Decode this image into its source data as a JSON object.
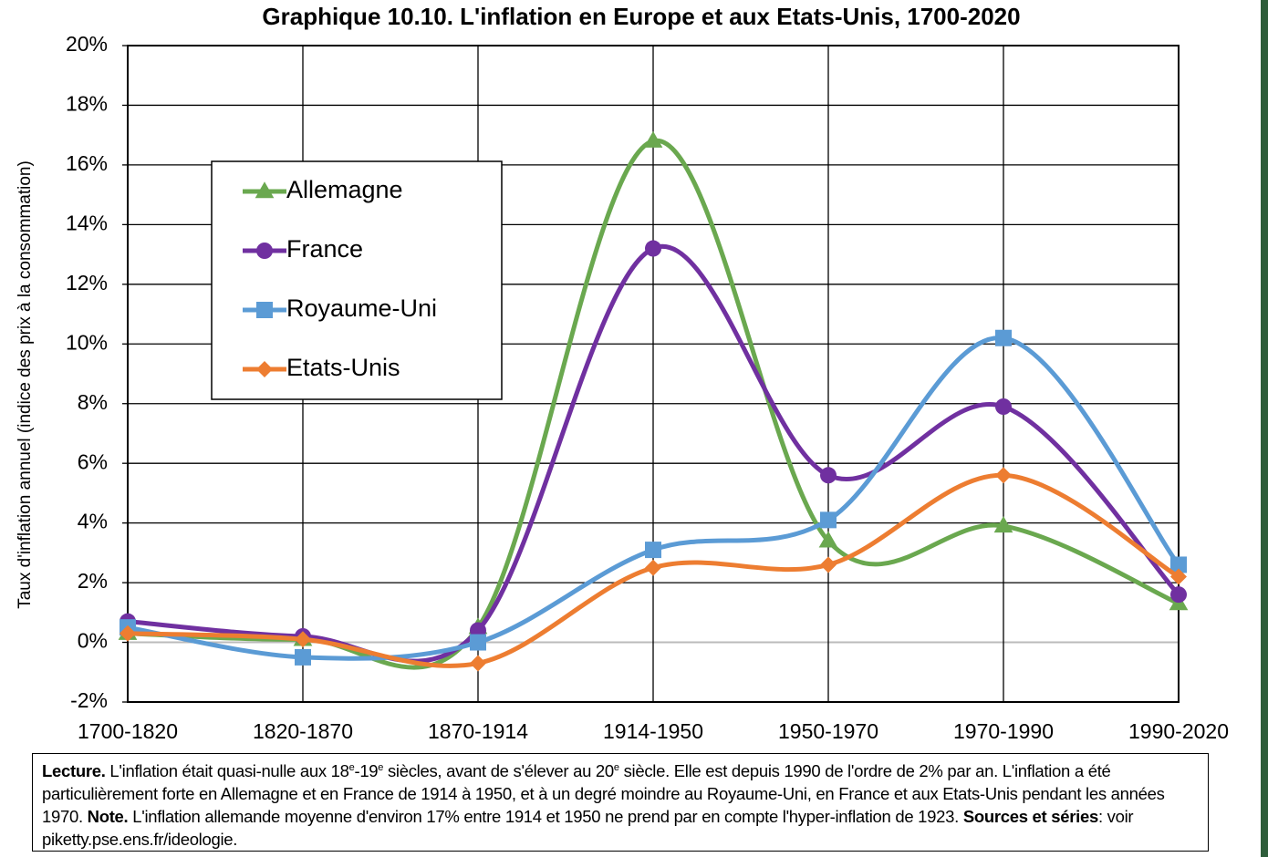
{
  "chart_data": {
    "type": "line",
    "title": "Graphique 10.10. L'inflation en Europe et aux Etats-Unis, 1700-2020",
    "y_label": "Taux d'inflation annuel (indice des prix à la consommation)",
    "categories": [
      "1700-1820",
      "1820-1870",
      "1870-1914",
      "1914-1950",
      "1950-1970",
      "1970-1990",
      "1990-2020"
    ],
    "series": [
      {
        "name": "Allemagne",
        "color": "#6aa84f",
        "marker": "triangle",
        "values": [
          0.3,
          0.1,
          0.5,
          16.8,
          3.4,
          3.9,
          1.3
        ]
      },
      {
        "name": "France",
        "color": "#7030a0",
        "marker": "circle",
        "values": [
          0.7,
          0.2,
          0.4,
          13.2,
          5.6,
          7.9,
          1.6
        ]
      },
      {
        "name": "Royaume-Uni",
        "color": "#5b9bd5",
        "marker": "square",
        "values": [
          0.5,
          -0.5,
          0.0,
          3.1,
          4.1,
          10.2,
          2.6
        ]
      },
      {
        "name": "Etats-Unis",
        "color": "#ed7d31",
        "marker": "diamond",
        "values": [
          0.3,
          0.1,
          -0.7,
          2.5,
          2.6,
          5.6,
          2.2
        ]
      }
    ],
    "ylim": [
      -2,
      20
    ],
    "yticks": [
      {
        "value": -2,
        "label": "-2%"
      },
      {
        "value": 0,
        "label": "0%"
      },
      {
        "value": 2,
        "label": "2%"
      },
      {
        "value": 4,
        "label": "4%"
      },
      {
        "value": 6,
        "label": "6%"
      },
      {
        "value": 8,
        "label": "8%"
      },
      {
        "value": 10,
        "label": "10%"
      },
      {
        "value": 12,
        "label": "12%"
      },
      {
        "value": 14,
        "label": "14%"
      },
      {
        "value": 16,
        "label": "16%"
      },
      {
        "value": 18,
        "label": "18%"
      },
      {
        "value": 20,
        "label": "20%"
      }
    ],
    "grid": true,
    "smooth": true,
    "legend": "upper left",
    "note": [
      {
        "text": "Lecture.",
        "style": "bold"
      },
      {
        "text": " L'inflation était quasi-nulle aux 18",
        "style": "normal"
      },
      {
        "text": "e",
        "style": "sup"
      },
      {
        "text": "-19",
        "style": "normal"
      },
      {
        "text": "e",
        "style": "sup"
      },
      {
        "text": " siècles, avant de s'élever au 20",
        "style": "normal"
      },
      {
        "text": "e",
        "style": "sup"
      },
      {
        "text": " siècle. Elle est depuis 1990 de l'ordre de 2% par an. L'inflation a été particulièrement forte en Allemagne et en France de 1914 à 1950, et à un degré moindre au Royaume-Uni, en France et aux Etats-Unis pendant les années 1970. ",
        "style": "normal"
      },
      {
        "text": "Note.",
        "style": "bold"
      },
      {
        "text": " L'inflation allemande moyenne d'environ 17% entre 1914 et 1950 ne prend par en compte l'hyper-inflation de 1923. ",
        "style": "normal"
      },
      {
        "text": "Sources et séries",
        "style": "bold"
      },
      {
        "text": ": voir piketty.pse.ens.fr/ideologie.",
        "style": "normal"
      }
    ]
  }
}
